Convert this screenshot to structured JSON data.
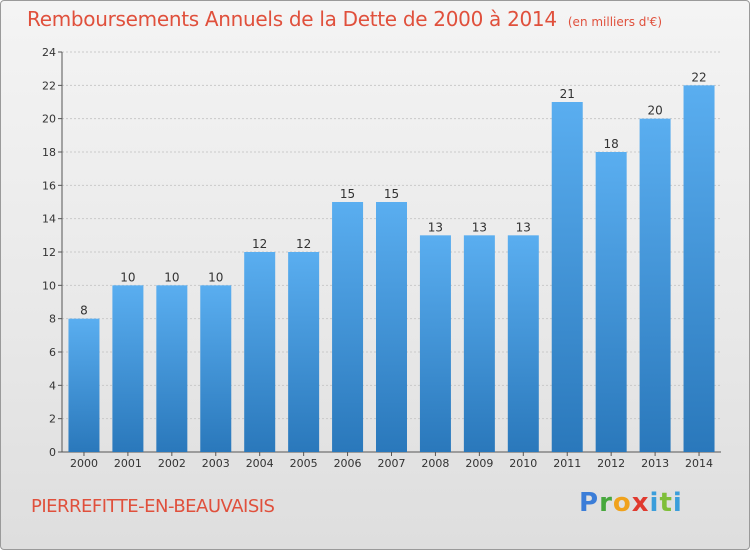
{
  "title": "Remboursements Annuels de la Dette de 2000 à 2014",
  "subtitle": "(en milliers d'€)",
  "city": "PIERREFITTE-EN-BEAUVAISIS",
  "logo": {
    "text": "Proxiti"
  },
  "colors": {
    "title": "#e0503c",
    "bar_top": "#5aaef0",
    "bar_bottom": "#2a78bb"
  },
  "chart_data": {
    "type": "bar",
    "categories": [
      "2000",
      "2001",
      "2002",
      "2003",
      "2004",
      "2005",
      "2006",
      "2007",
      "2008",
      "2009",
      "2010",
      "2011",
      "2012",
      "2013",
      "2014"
    ],
    "values": [
      8,
      10,
      10,
      10,
      12,
      12,
      15,
      15,
      13,
      13,
      13,
      21,
      18,
      20,
      22
    ],
    "ylim": [
      0,
      24
    ],
    "yticks": [
      0,
      2,
      4,
      6,
      8,
      10,
      12,
      14,
      16,
      18,
      20,
      22,
      24
    ],
    "grid": true
  }
}
